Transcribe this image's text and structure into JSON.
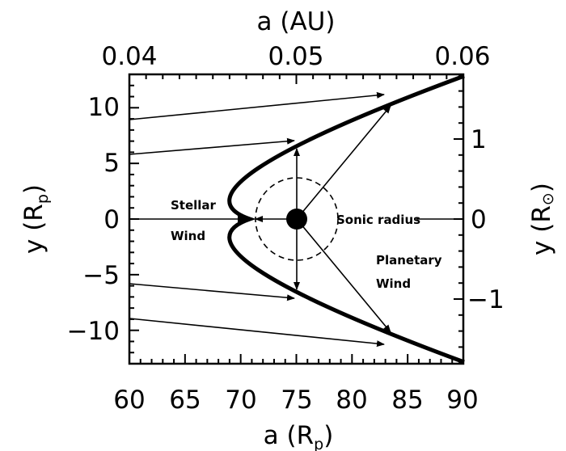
{
  "chart_data": {
    "type": "diagram",
    "bottom_axis": {
      "range": [
        60,
        90
      ],
      "ticks": [
        "60",
        "65",
        "70",
        "75",
        "80",
        "85",
        "90"
      ],
      "title": "a (R",
      "title_sub": "p",
      "title_end": ")"
    },
    "top_axis": {
      "range": [
        0.04,
        0.06
      ],
      "ticks": [
        "0.04",
        "0.05",
        "0.06"
      ],
      "title": "a (AU)"
    },
    "left_axis": {
      "range": [
        -13,
        13
      ],
      "ticks": [
        "10",
        "5",
        "0",
        "−5",
        "−10"
      ],
      "title": "y (R",
      "title_sub": "p",
      "title_end": ")"
    },
    "right_axis": {
      "ticks": [
        "1",
        "0",
        "−1"
      ],
      "title": "y (R",
      "title_sub": "⊙",
      "title_end": ")"
    },
    "annotations": {
      "stellar_line1": "Stellar",
      "stellar_line2": "Wind",
      "sonic": "Sonic radius",
      "planetary_line1": "Planetary",
      "planetary_line2": "Wind"
    }
  }
}
